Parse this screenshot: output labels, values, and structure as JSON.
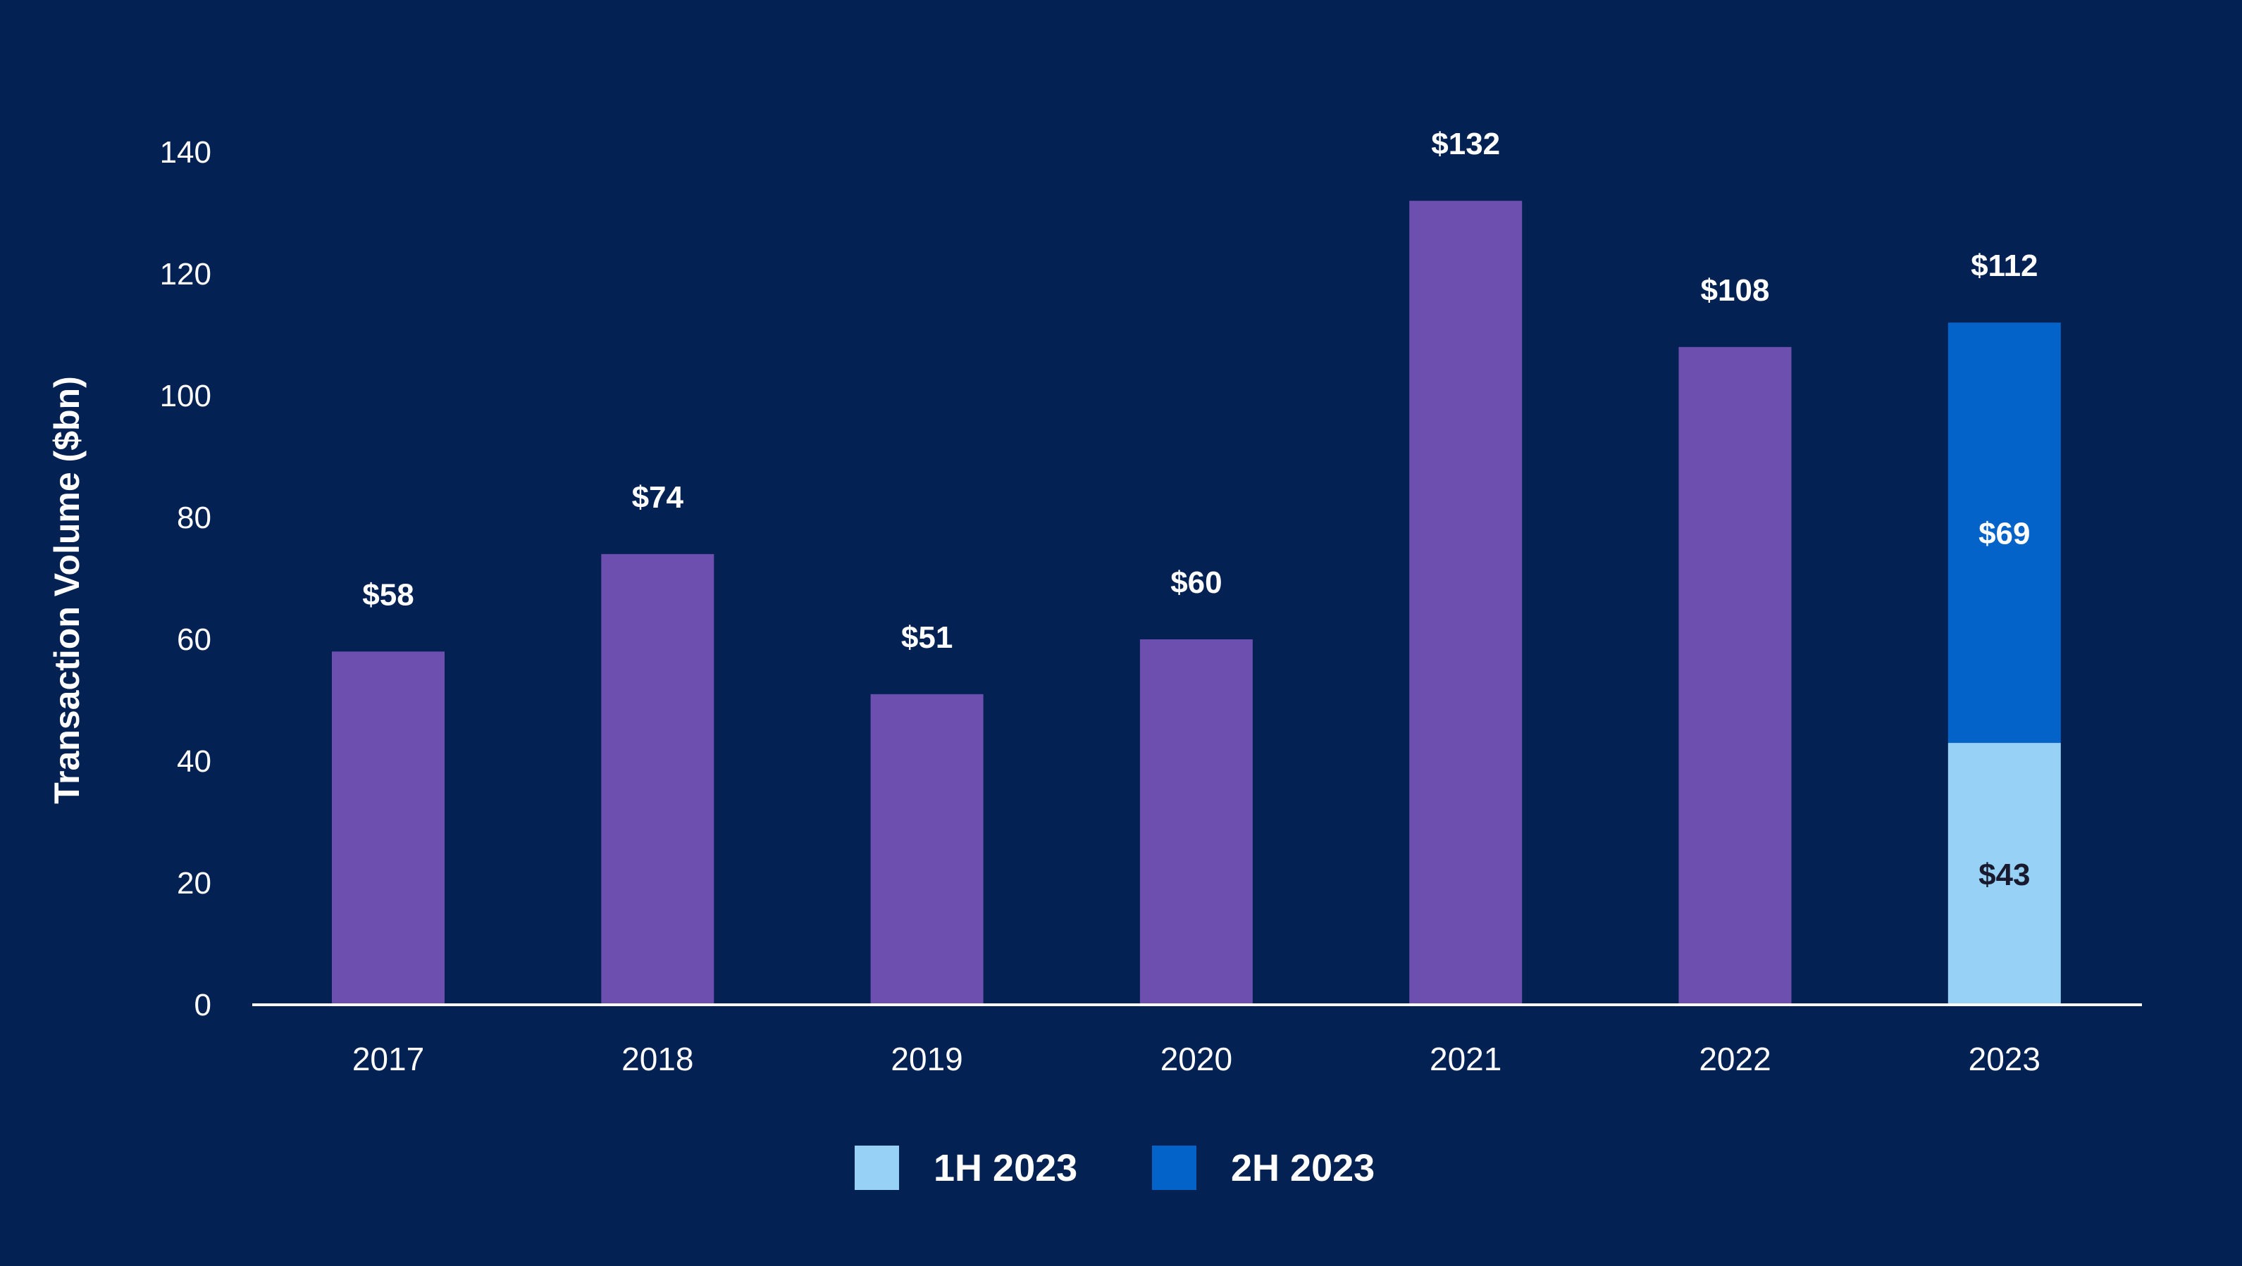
{
  "chart_data": {
    "type": "bar",
    "title": "",
    "xlabel": "",
    "ylabel": "Transaction Volume ($bn)",
    "ylim": [
      0,
      140
    ],
    "yticks": [
      0,
      20,
      40,
      60,
      80,
      100,
      120,
      140
    ],
    "grid": false,
    "legend_position": "bottom-center",
    "categories": [
      "2017",
      "2018",
      "2019",
      "2020",
      "2021",
      "2022",
      "2023"
    ],
    "series": [
      {
        "name": "",
        "color": "#6d4fb0",
        "values": [
          58,
          74,
          51,
          60,
          132,
          108,
          null
        ],
        "labels": [
          "$58",
          "$74",
          "$51",
          "$60",
          "$132",
          "$108",
          null
        ]
      },
      {
        "name": "1H 2023",
        "color": "#97d1f5",
        "values": [
          null,
          null,
          null,
          null,
          null,
          null,
          43
        ],
        "labels": [
          null,
          null,
          null,
          null,
          null,
          null,
          "$43"
        ],
        "label_color": "#1a1a2e"
      },
      {
        "name": "2H 2023",
        "color": "#0463c9",
        "values": [
          null,
          null,
          null,
          null,
          null,
          null,
          69
        ],
        "labels": [
          null,
          null,
          null,
          null,
          null,
          null,
          "$69"
        ],
        "label_color": "#ffffff"
      }
    ],
    "totals": [
      null,
      null,
      null,
      null,
      null,
      null,
      "$112"
    ]
  }
}
